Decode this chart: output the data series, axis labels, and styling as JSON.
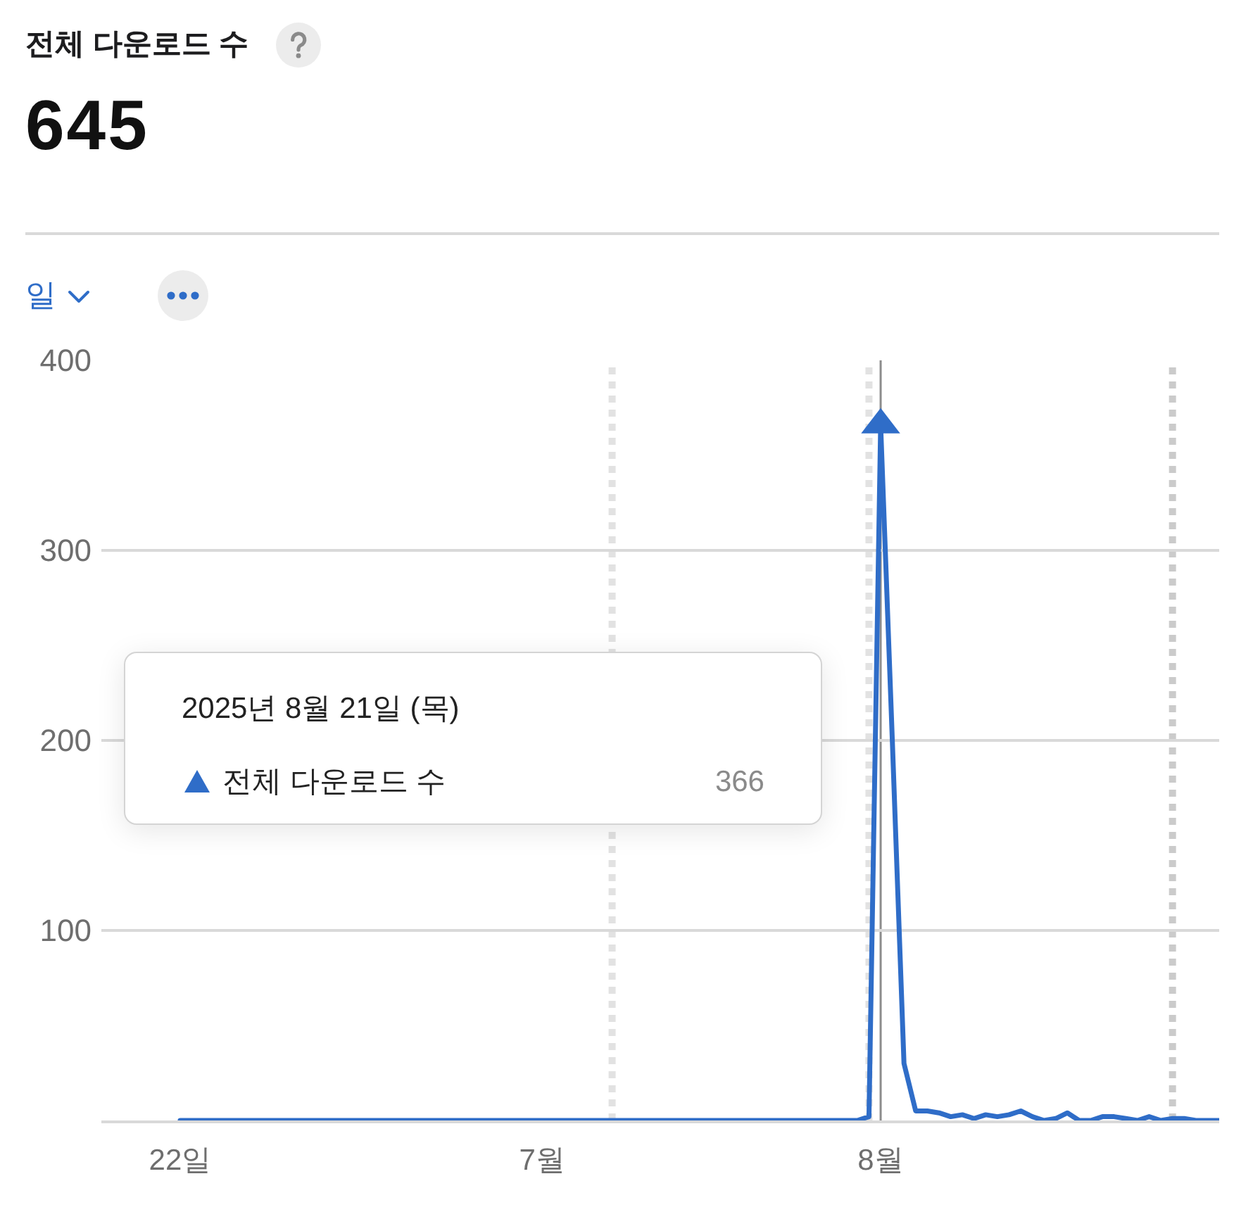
{
  "chart_data": {
    "type": "line",
    "title": "전체 다운로드 수",
    "subtitle": "645",
    "x": [
      "2025-06-22",
      "2025-06-23",
      "2025-06-24",
      "2025-06-25",
      "2025-06-26",
      "2025-06-27",
      "2025-06-28",
      "2025-06-29",
      "2025-06-30",
      "2025-07-01",
      "2025-07-02",
      "2025-07-03",
      "2025-07-04",
      "2025-07-05",
      "2025-07-06",
      "2025-07-07",
      "2025-07-08",
      "2025-07-09",
      "2025-07-10",
      "2025-07-11",
      "2025-07-12",
      "2025-07-13",
      "2025-07-14",
      "2025-07-15",
      "2025-07-16",
      "2025-07-17",
      "2025-07-18",
      "2025-07-19",
      "2025-07-20",
      "2025-07-21",
      "2025-07-22",
      "2025-07-23",
      "2025-07-24",
      "2025-07-25",
      "2025-07-26",
      "2025-07-27",
      "2025-07-28",
      "2025-07-29",
      "2025-07-30",
      "2025-07-31",
      "2025-08-01",
      "2025-08-02",
      "2025-08-03",
      "2025-08-04",
      "2025-08-05",
      "2025-08-06",
      "2025-08-07",
      "2025-08-08",
      "2025-08-09",
      "2025-08-10",
      "2025-08-11",
      "2025-08-12",
      "2025-08-13",
      "2025-08-14",
      "2025-08-15",
      "2025-08-16",
      "2025-08-17",
      "2025-08-18",
      "2025-08-19",
      "2025-08-20",
      "2025-08-21",
      "2025-08-22",
      "2025-08-23",
      "2025-08-24",
      "2025-08-25",
      "2025-08-26",
      "2025-08-27",
      "2025-08-28",
      "2025-08-29",
      "2025-08-30",
      "2025-08-31",
      "2025-09-01",
      "2025-09-02",
      "2025-09-03",
      "2025-09-04",
      "2025-09-05",
      "2025-09-06",
      "2025-09-07",
      "2025-09-08",
      "2025-09-09",
      "2025-09-10",
      "2025-09-11",
      "2025-09-12",
      "2025-09-13",
      "2025-09-14",
      "2025-09-15",
      "2025-09-16",
      "2025-09-17",
      "2025-09-18",
      "2025-09-19"
    ],
    "series": [
      {
        "name": "전체 다운로드 수",
        "color": "#2f6dc8",
        "values": [
          0,
          0,
          0,
          0,
          0,
          0,
          0,
          0,
          0,
          0,
          0,
          0,
          0,
          0,
          0,
          0,
          0,
          0,
          0,
          0,
          0,
          0,
          0,
          0,
          0,
          0,
          0,
          0,
          0,
          0,
          0,
          0,
          0,
          0,
          0,
          0,
          0,
          0,
          0,
          0,
          0,
          0,
          0,
          0,
          0,
          0,
          0,
          0,
          0,
          0,
          0,
          0,
          0,
          0,
          0,
          0,
          0,
          0,
          0,
          2,
          366,
          200,
          30,
          5,
          5,
          4,
          2,
          3,
          1,
          3,
          2,
          3,
          5,
          2,
          0,
          1,
          4,
          0,
          0,
          2,
          2,
          1,
          0,
          2,
          0,
          1,
          1,
          0,
          0,
          0
        ]
      },
      {
        "type": "scatter",
        "color": "#2f6dc8",
        "marker": "triangle",
        "x": [
          "2025-08-21"
        ],
        "values": [
          366
        ]
      }
    ],
    "xlim": [
      "2025-06-15T06:00",
      "2025-09-19"
    ],
    "xticks": [
      {
        "value": "2025-06-22",
        "label": "22일"
      },
      {
        "value": "2025-07-23",
        "label": "7월"
      },
      {
        "value": "2025-08-21",
        "label": "8월"
      }
    ],
    "ylim": [
      0,
      400
    ],
    "yticks": [
      {
        "value": 0,
        "label": null
      },
      100,
      200,
      300,
      400
    ],
    "grid": "y",
    "ref_lines": [
      {
        "axis": "x",
        "value": "2025-07-29",
        "color": "#e2e2e2",
        "line_style": "dotted"
      },
      {
        "axis": "x",
        "value": "2025-08-20",
        "color": "#e2e2e2",
        "line_style": "dotted"
      },
      {
        "axis": "x",
        "value": "2025-09-15",
        "color": "#cbcbcb",
        "line_style": "dotted"
      },
      {
        "axis": "x",
        "value": "2025-08-21",
        "color": "#8c8c8c",
        "line_style": "solid"
      }
    ],
    "annotations": [
      "일",
      "2025년 8월 21일 (목)",
      "366"
    ]
  }
}
